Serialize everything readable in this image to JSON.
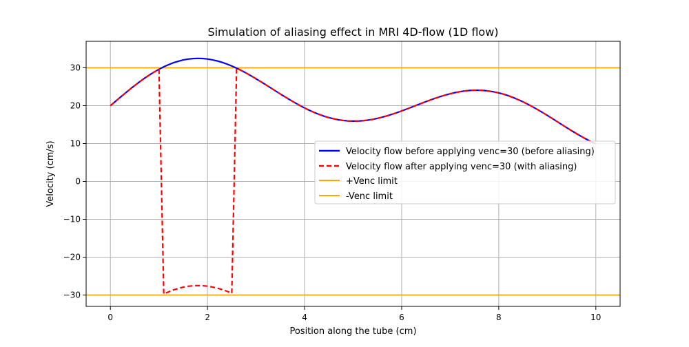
{
  "chart_data": {
    "type": "line",
    "title": "Simulation of aliasing effect in MRI 4D-flow (1D flow)",
    "xlabel": "Position along the tube (cm)",
    "ylabel": "Velocity (cm/s)",
    "xlim": [
      -0.5,
      10.5
    ],
    "ylim": [
      -33,
      37
    ],
    "xticks": [
      0,
      2,
      4,
      6,
      8,
      10
    ],
    "yticks": [
      -30,
      -20,
      -10,
      0,
      10,
      20,
      30
    ],
    "grid": true,
    "legend_position": "center-right",
    "velocity_model": "20 + 8·sin(x) + 6·sin(0.5·x)",
    "venc": 30,
    "series": [
      {
        "name": "Velocity flow before applying venc=30 (before aliasing)",
        "color": "#0000ff",
        "style": "solid",
        "kind": "original"
      },
      {
        "name": "Velocity flow after applying venc=30 (with aliasing)",
        "color": "#ff0000",
        "style": "dashed",
        "kind": "aliased"
      },
      {
        "name": "+Venc limit",
        "color": "#ffa500",
        "style": "solid",
        "kind": "hline",
        "y": 30
      },
      {
        "name": "-Venc limit",
        "color": "#ffa500",
        "style": "solid",
        "kind": "hline",
        "y": -30
      }
    ]
  }
}
